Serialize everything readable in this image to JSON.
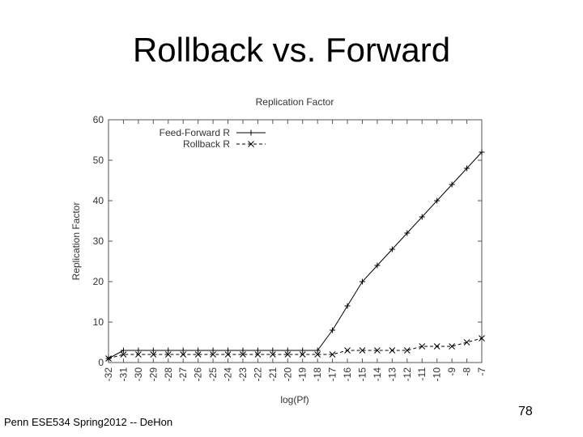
{
  "slide": {
    "title": "Rollback vs. Forward",
    "footer": "Penn ESE534 Spring2012 -- DeHon",
    "page_number": "78"
  },
  "chart_data": {
    "type": "line",
    "title": "Replication Factor",
    "xlabel": "log(Pf)",
    "ylabel": "Replication Factor",
    "categories": [
      "-32",
      "-31",
      "-30",
      "-29",
      "-28",
      "-27",
      "-26",
      "-25",
      "-24",
      "-23",
      "-22",
      "-21",
      "-20",
      "-19",
      "-18",
      "-17",
      "-16",
      "-15",
      "-14",
      "-13",
      "-12",
      "-11",
      "-10",
      "-9",
      "-8",
      "-7"
    ],
    "ylim": [
      0,
      60
    ],
    "yticks": [
      0,
      10,
      20,
      30,
      40,
      50,
      60
    ],
    "grid": false,
    "legend_position": "top-left",
    "series": [
      {
        "name": "Feed-Forward R",
        "marker": "plus",
        "line_style": "solid",
        "color": "#000000",
        "values": [
          1,
          3,
          3,
          3,
          3,
          3,
          3,
          3,
          3,
          3,
          3,
          3,
          3,
          3,
          3,
          8,
          14,
          20,
          24,
          28,
          32,
          36,
          40,
          44,
          48,
          52
        ]
      },
      {
        "name": "Rollback R",
        "marker": "x",
        "line_style": "dashed",
        "color": "#000000",
        "values": [
          1,
          2,
          2,
          2,
          2,
          2,
          2,
          2,
          2,
          2,
          2,
          2,
          2,
          2,
          2,
          2,
          3,
          3,
          3,
          3,
          3,
          4,
          4,
          4,
          5,
          6
        ]
      }
    ]
  }
}
